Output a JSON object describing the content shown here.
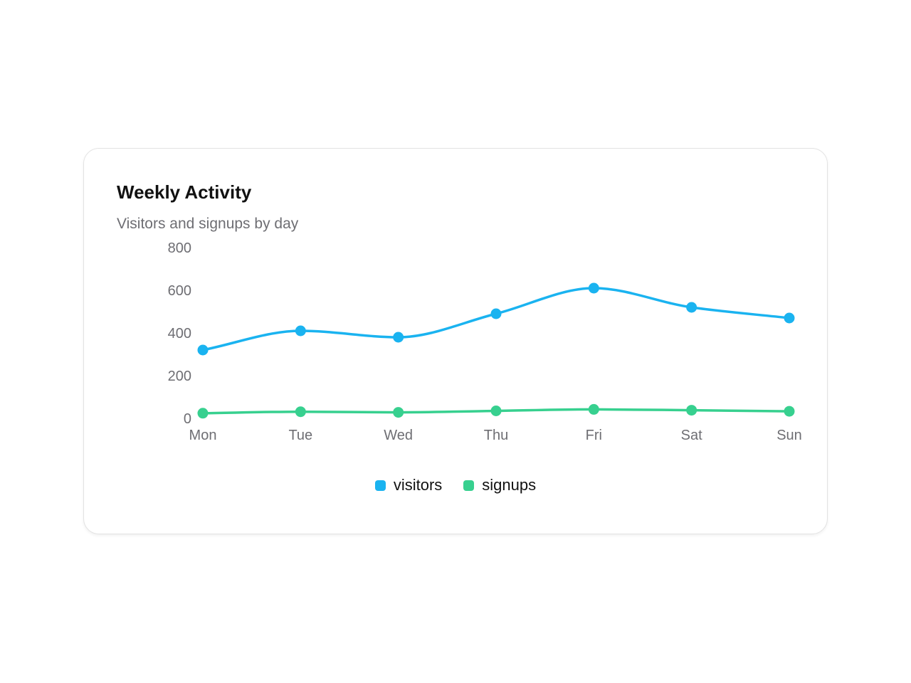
{
  "card": {
    "title": "Weekly Activity",
    "subtitle": "Visitors and signups by day"
  },
  "chart_data": {
    "type": "line",
    "title": "Weekly Activity",
    "subtitle": "Visitors and signups by day",
    "xlabel": "",
    "ylabel": "",
    "categories": [
      "Mon",
      "Tue",
      "Wed",
      "Thu",
      "Fri",
      "Sat",
      "Sun"
    ],
    "y_ticks": [
      "800",
      "600",
      "400",
      "200",
      "0"
    ],
    "ylim": [
      0,
      800
    ],
    "grid": false,
    "curve": "smooth",
    "legend_position": "bottom-center",
    "series": [
      {
        "name": "visitors",
        "color": "#1AB3F0",
        "values": [
          320,
          410,
          380,
          490,
          610,
          520,
          470
        ]
      },
      {
        "name": "signups",
        "color": "#37D08F",
        "values": [
          24,
          31,
          28,
          35,
          42,
          38,
          33
        ]
      }
    ]
  }
}
